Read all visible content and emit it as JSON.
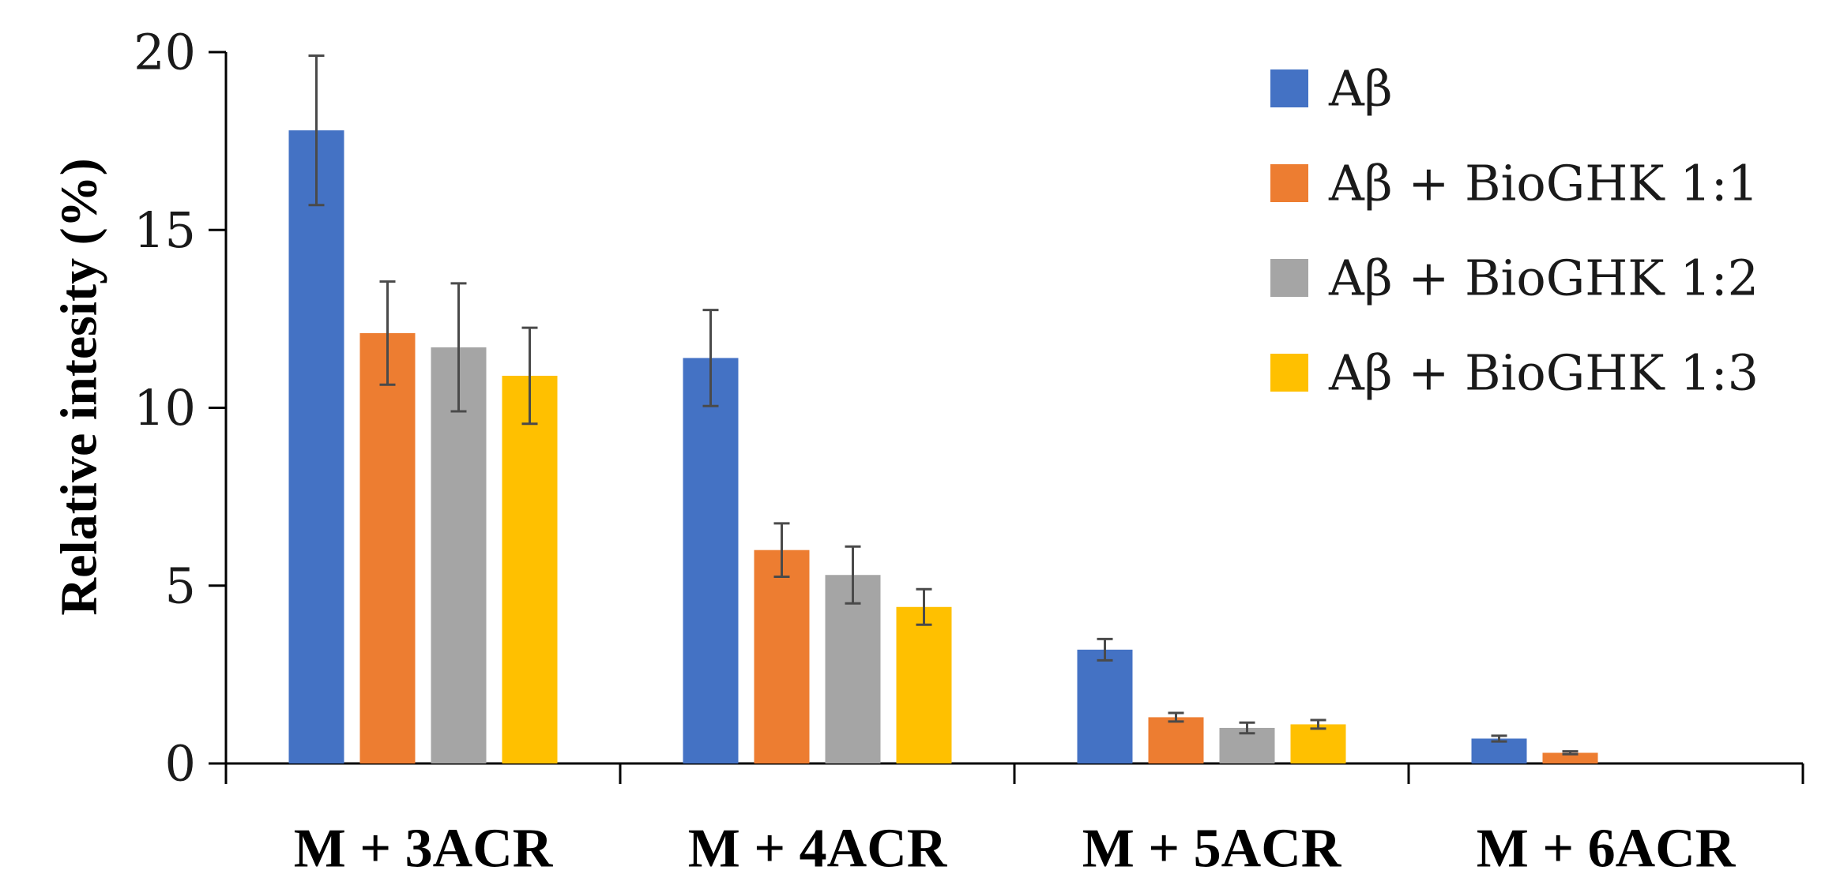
{
  "chart_data": {
    "type": "bar",
    "title": "",
    "xlabel": "",
    "ylabel": "Relative intesity (%)",
    "ylim": [
      0,
      20
    ],
    "yticks": [
      0,
      5,
      10,
      15,
      20
    ],
    "grid": false,
    "legend_position": "top-right",
    "categories": [
      "M + 3ACR",
      "M + 4ACR",
      "M + 5ACR",
      "M + 6ACR"
    ],
    "series": [
      {
        "name": "Aβ",
        "color": "#4472C4",
        "values": [
          17.8,
          11.4,
          3.2,
          0.7
        ],
        "errors": [
          2.1,
          1.35,
          0.3,
          0.08
        ]
      },
      {
        "name": "Aβ + BioGHK 1:1",
        "color": "#ED7D31",
        "values": [
          12.1,
          6.0,
          1.3,
          0.3
        ],
        "errors": [
          1.45,
          0.75,
          0.12,
          0.04
        ]
      },
      {
        "name": "Aβ + BioGHK 1:2",
        "color": "#A5A5A5",
        "values": [
          11.7,
          5.3,
          1.0,
          0
        ],
        "errors": [
          1.8,
          0.8,
          0.15,
          0
        ]
      },
      {
        "name": "Aβ + BioGHK 1:3",
        "color": "#FFC000",
        "values": [
          10.9,
          4.4,
          1.1,
          0
        ],
        "errors": [
          1.35,
          0.5,
          0.12,
          0
        ]
      }
    ]
  }
}
